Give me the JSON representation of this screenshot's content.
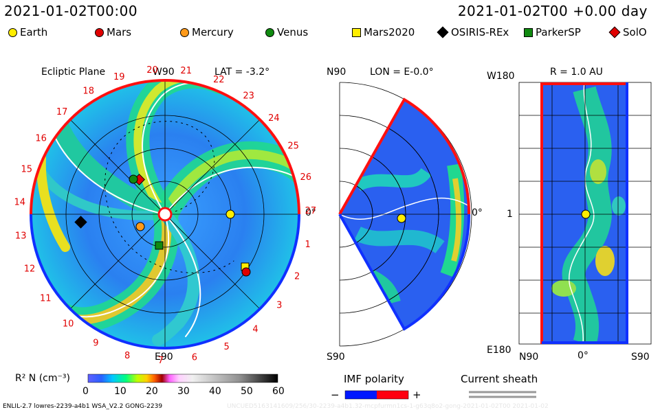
{
  "header": {
    "timestamp_left": "2021-01-02T00:00",
    "timestamp_right": "2021-01-02T00 +0.00 day"
  },
  "legend": [
    {
      "label": "Earth",
      "shape": "circle",
      "color": "#ffee00"
    },
    {
      "label": "Mars",
      "shape": "circle",
      "color": "#e00000"
    },
    {
      "label": "Mercury",
      "shape": "circle",
      "color": "#ff9a1a"
    },
    {
      "label": "Venus",
      "shape": "circle",
      "color": "#108a10"
    },
    {
      "label": "Mars2020",
      "shape": "square",
      "color": "#ffee00"
    },
    {
      "label": "OSIRIS-REx",
      "shape": "diamond",
      "color": "#000000"
    },
    {
      "label": "ParkerSP",
      "shape": "square",
      "color": "#108a10"
    },
    {
      "label": "SolO",
      "shape": "diamond",
      "color": "#e00000"
    }
  ],
  "panels": {
    "ecliptic": {
      "title": "Ecliptic Plane",
      "top_label": "W90",
      "lat_label": "LAT = -3.2°",
      "right_label": "0°",
      "bottom_label": "E90",
      "carrington": [
        "20",
        "21",
        "22",
        "23",
        "24",
        "25",
        "26",
        "27",
        "1",
        "2",
        "3",
        "4",
        "5",
        "6",
        "7",
        "8",
        "9",
        "10",
        "11",
        "12",
        "13",
        "14",
        "15",
        "16",
        "17",
        "18",
        "19"
      ]
    },
    "meridional": {
      "top_label": "N90",
      "lon_label": "LON = E-0.0°",
      "right_label": "0°",
      "bottom_label": "S90"
    },
    "radial": {
      "r_label": "R = 1.0 AU",
      "top_label": "W180",
      "mid_label": "1",
      "bottom_label": "E180",
      "x_left": "N90",
      "x_mid": "0°",
      "x_right": "S90"
    }
  },
  "colorbar": {
    "label": "R² N (cm⁻³)",
    "ticks": [
      "0",
      "10",
      "20",
      "30",
      "40",
      "50",
      "60"
    ]
  },
  "imf": {
    "label": "IMF polarity",
    "minus": "−",
    "plus": "+",
    "color_neg": "#0018ff",
    "color_pos": "#ff0010"
  },
  "current_sheath": {
    "label": "Current sheath"
  },
  "footer": {
    "left": "ENLIL-2.7 lowres-2239-a4b1 WSA_V2.2 GONG-2239",
    "right": "UNCUED5163141609/256/30-2239-a4b1.32-mcpfurmn1cs-1-g63q8o2-gong-2021-01-02T00  2021-01-02"
  }
}
